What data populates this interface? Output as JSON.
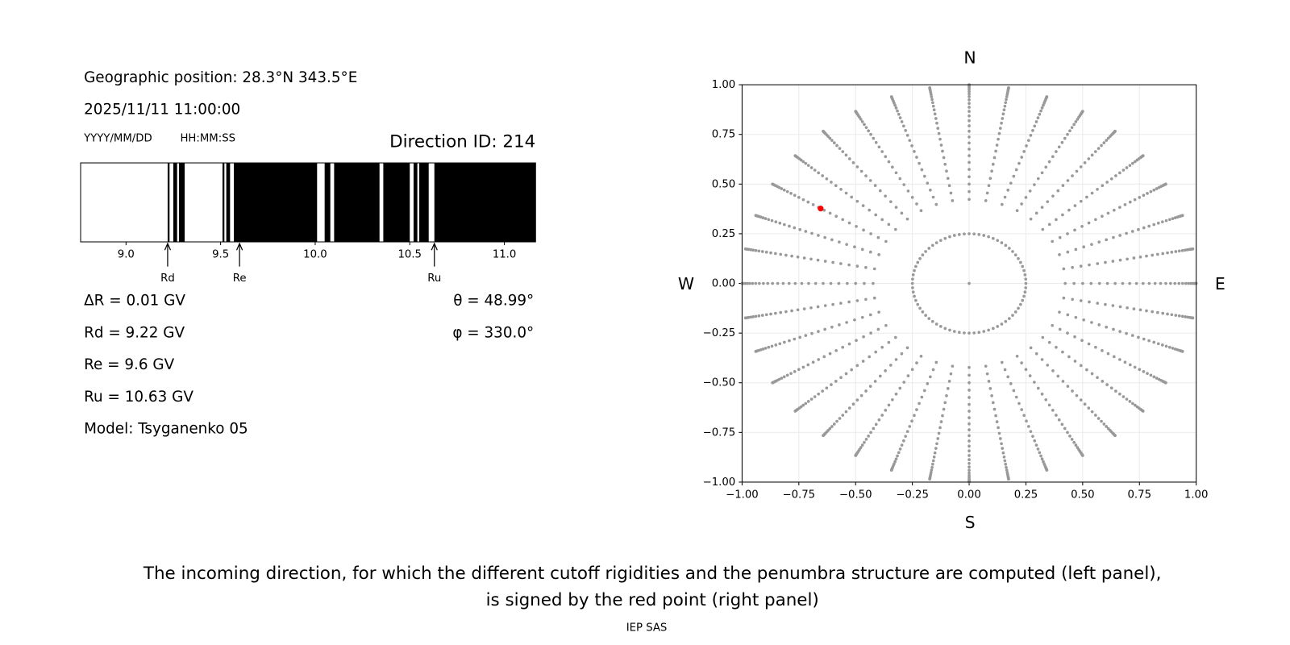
{
  "info": {
    "geographic_position": "Geographic position: 28.3°N 343.5°E",
    "datetime": "2025/11/11 11:00:00",
    "date_format": "YYYY/MM/DD",
    "time_format": "HH:MM:SS",
    "direction_id": "Direction ID: 214",
    "delta_r": "ΔR = 0.01 GV",
    "rd": "Rd = 9.22 GV",
    "re": "Re = 9.6 GV",
    "ru": "Ru = 10.63 GV",
    "model": "Model: Tsyganenko 05",
    "theta": "θ = 48.99°",
    "phi": "φ = 330.0°"
  },
  "chart_data": [
    {
      "type": "penumbra",
      "xlim": [
        8.76,
        11.165
      ],
      "xticks": [
        {
          "value": 9,
          "label": "9.0"
        },
        {
          "value": 9.5,
          "label": "9.5"
        },
        {
          "value": 10,
          "label": "10.0"
        },
        {
          "value": 10.5,
          "label": "10.5"
        },
        {
          "value": 11,
          "label": "11.0"
        }
      ],
      "allowed_color": "#ffffff",
      "forbidden_color": "#000000",
      "allowed": [
        [
          8.76,
          9.22
        ],
        [
          9.23,
          9.25
        ],
        [
          9.27,
          9.28
        ],
        [
          9.31,
          9.51
        ],
        [
          9.52,
          9.53
        ],
        [
          9.55,
          9.57
        ],
        [
          10.01,
          10.05
        ],
        [
          10.08,
          10.1
        ],
        [
          10.34,
          10.36
        ],
        [
          10.5,
          10.52
        ],
        [
          10.54,
          10.55
        ],
        [
          10.6,
          10.63
        ]
      ],
      "markers": [
        {
          "name": "Rd",
          "value": 9.22
        },
        {
          "name": "Re",
          "value": 9.6
        },
        {
          "name": "Ru",
          "value": 10.63
        }
      ]
    },
    {
      "type": "sky-map",
      "xlim": [
        -1,
        1
      ],
      "ylim": [
        -1,
        1
      ],
      "xticks": [
        {
          "value": -1,
          "label": "−1.00"
        },
        {
          "value": -0.75,
          "label": "−0.75"
        },
        {
          "value": -0.5,
          "label": "−0.50"
        },
        {
          "value": -0.25,
          "label": "−0.25"
        },
        {
          "value": 0,
          "label": "0.00"
        },
        {
          "value": 0.25,
          "label": "0.25"
        },
        {
          "value": 0.5,
          "label": "0.50"
        },
        {
          "value": 0.75,
          "label": "0.75"
        },
        {
          "value": 1,
          "label": "1.00"
        }
      ],
      "yticks": [
        {
          "value": -1,
          "label": "−1.00"
        },
        {
          "value": -0.75,
          "label": "−0.75"
        },
        {
          "value": -0.5,
          "label": "−0.50"
        },
        {
          "value": -0.25,
          "label": "−0.25"
        },
        {
          "value": 0,
          "label": "0.00"
        },
        {
          "value": 0.25,
          "label": "0.25"
        },
        {
          "value": 0.5,
          "label": "0.50"
        },
        {
          "value": 0.75,
          "label": "0.75"
        },
        {
          "value": 1,
          "label": "1.00"
        }
      ],
      "grid": true,
      "color": "#999999",
      "spoke_azimuths": [
        0,
        10,
        20,
        30,
        40,
        50,
        60,
        70,
        80,
        90,
        100,
        110,
        120,
        130,
        140,
        150,
        160,
        170,
        180,
        190,
        200,
        210,
        220,
        230,
        240,
        250,
        260,
        270,
        280,
        290,
        300,
        310,
        320,
        330,
        340,
        350
      ],
      "spoke_radii": [
        0.423,
        0.462,
        0.5,
        0.537,
        0.574,
        0.609,
        0.643,
        0.676,
        0.707,
        0.737,
        0.766,
        0.793,
        0.819,
        0.843,
        0.866,
        0.887,
        0.906,
        0.924,
        0.94,
        0.954,
        0.966,
        0.976,
        0.985,
        0.991,
        0.996,
        0.999,
        1.0
      ],
      "ring_radius": 0.25,
      "ring_azimuths": [
        0,
        5,
        10,
        15,
        20,
        25,
        30,
        35,
        40,
        45,
        50,
        55,
        60,
        65,
        70,
        75,
        80,
        85,
        90,
        95,
        100,
        105,
        110,
        115,
        120,
        125,
        130,
        135,
        140,
        145,
        150,
        155,
        160,
        165,
        170,
        175,
        180,
        185,
        190,
        195,
        200,
        205,
        210,
        215,
        220,
        225,
        230,
        235,
        240,
        245,
        250,
        255,
        260,
        265,
        270,
        275,
        280,
        285,
        290,
        295,
        300,
        305,
        310,
        315,
        320,
        325,
        330,
        335,
        340,
        345,
        350,
        355
      ],
      "center": [
        0,
        0
      ],
      "highlight": {
        "x": -0.654,
        "y": 0.377,
        "color": "#ff0000"
      },
      "directions": {
        "north": "N",
        "south": "S",
        "west": "W",
        "east": "E"
      }
    }
  ],
  "caption": {
    "line1": "The incoming direction, for which the different cutoff rigidities and the penumbra structure are computed (left panel),",
    "line2": "is signed by the red point (right panel)",
    "credit": "IEP SAS"
  }
}
